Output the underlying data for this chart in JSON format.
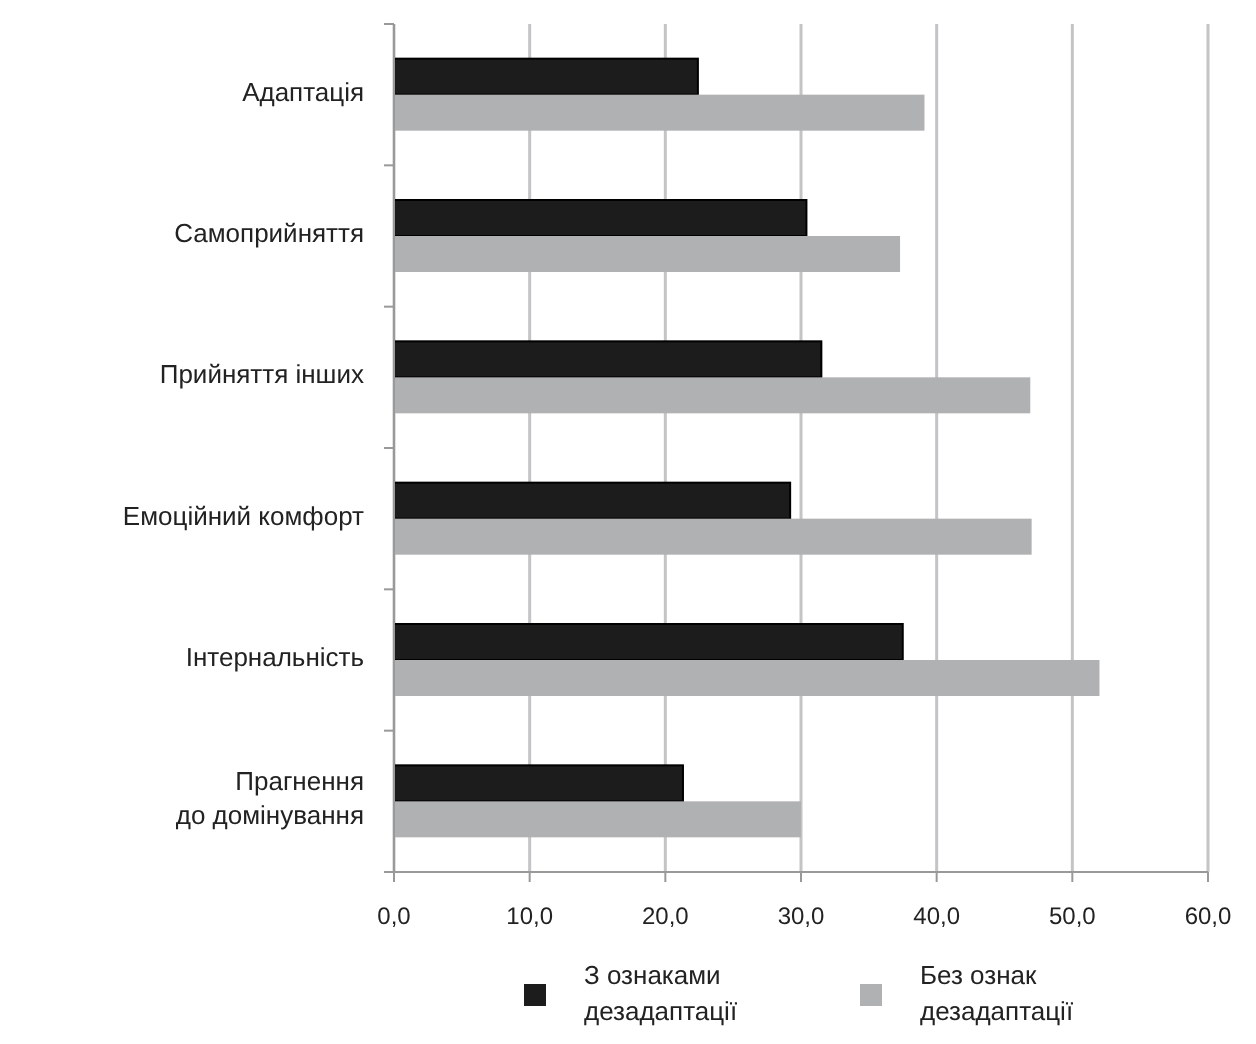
{
  "chart_data": {
    "type": "bar",
    "orientation": "horizontal",
    "categories": [
      "Адаптація",
      "Самоприйняття",
      "Прийняття інших",
      "Емоційний комфорт",
      "Інтернальність",
      "Прагнення\nдо домінування"
    ],
    "series": [
      {
        "name": "З ознаками\nдезадаптації",
        "color": "#1c1c1c",
        "values": [
          22.4,
          30.4,
          31.5,
          29.2,
          37.5,
          21.3
        ]
      },
      {
        "name": "Без ознак\nдезадаптації",
        "color": "#b0b1b3",
        "values": [
          39.1,
          37.3,
          46.9,
          47.0,
          52.0,
          30.0
        ]
      }
    ],
    "xlim": [
      0,
      60
    ],
    "xticks": [
      {
        "value": 0,
        "label": "0,0"
      },
      {
        "value": 10,
        "label": "10,0"
      },
      {
        "value": 20,
        "label": "20,0"
      },
      {
        "value": 30,
        "label": "30,0"
      },
      {
        "value": 40,
        "label": "40,0"
      },
      {
        "value": 50,
        "label": "50,0"
      },
      {
        "value": 60,
        "label": "60,0"
      }
    ],
    "grid": "x",
    "legend": "bottom"
  }
}
